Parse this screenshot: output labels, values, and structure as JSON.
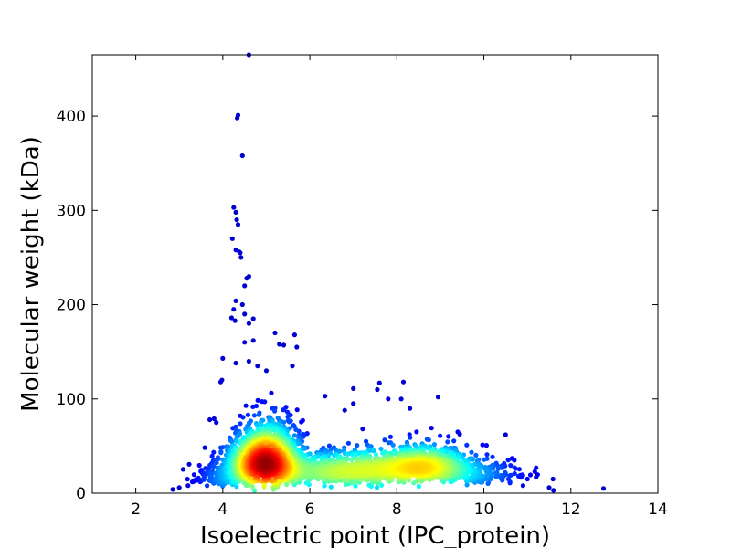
{
  "chart_data": {
    "type": "scatter",
    "title": "",
    "xlabel": "Isoelectric point (IPC_protein)",
    "ylabel": "Molecular weight (kDa)",
    "xlim": [
      1,
      14
    ],
    "ylim": [
      0,
      465
    ],
    "xticks": [
      2,
      4,
      6,
      8,
      10,
      12,
      14
    ],
    "yticks": [
      0,
      100,
      200,
      300,
      400
    ],
    "grid": false,
    "legend": "none",
    "colormap": "jet (point density)",
    "clusters": [
      {
        "center": [
          4.95,
          30
        ],
        "spread": [
          0.45,
          18
        ],
        "count": 1700
      },
      {
        "center": [
          5.05,
          55
        ],
        "spread": [
          0.35,
          20
        ],
        "count": 350
      },
      {
        "center": [
          6.3,
          22
        ],
        "spread": [
          0.7,
          12
        ],
        "count": 500
      },
      {
        "center": [
          7.5,
          25
        ],
        "spread": [
          0.8,
          14
        ],
        "count": 650
      },
      {
        "center": [
          8.7,
          28
        ],
        "spread": [
          0.6,
          14
        ],
        "count": 800
      },
      {
        "center": [
          9.8,
          20
        ],
        "spread": [
          0.6,
          11
        ],
        "count": 180
      },
      {
        "center": [
          3.9,
          15
        ],
        "spread": [
          0.3,
          10
        ],
        "count": 120
      }
    ],
    "outliers": [
      [
        4.6,
        465
      ],
      [
        4.35,
        401
      ],
      [
        4.33,
        398
      ],
      [
        4.45,
        358
      ],
      [
        4.25,
        303
      ],
      [
        4.3,
        298
      ],
      [
        4.32,
        290
      ],
      [
        4.35,
        285
      ],
      [
        4.22,
        270
      ],
      [
        4.3,
        258
      ],
      [
        4.4,
        255
      ],
      [
        4.42,
        250
      ],
      [
        4.38,
        256
      ],
      [
        4.6,
        230
      ],
      [
        4.55,
        228
      ],
      [
        4.5,
        220
      ],
      [
        4.3,
        204
      ],
      [
        4.25,
        195
      ],
      [
        4.45,
        200
      ],
      [
        4.2,
        186
      ],
      [
        4.5,
        190
      ],
      [
        4.6,
        180
      ],
      [
        4.7,
        185
      ],
      [
        4.28,
        183
      ],
      [
        5.2,
        170
      ],
      [
        5.65,
        168
      ],
      [
        5.7,
        155
      ],
      [
        5.3,
        158
      ],
      [
        5.4,
        157
      ],
      [
        4.5,
        160
      ],
      [
        4.7,
        162
      ],
      [
        5.6,
        135
      ],
      [
        4.0,
        143
      ],
      [
        4.3,
        138
      ],
      [
        4.6,
        140
      ],
      [
        4.8,
        135
      ],
      [
        5.0,
        130
      ],
      [
        3.95,
        118
      ],
      [
        3.98,
        120
      ],
      [
        6.35,
        103
      ],
      [
        7.6,
        117
      ],
      [
        7.55,
        110
      ],
      [
        7.0,
        111
      ],
      [
        8.15,
        118
      ],
      [
        8.1,
        100
      ],
      [
        7.8,
        100
      ],
      [
        8.95,
        102
      ],
      [
        7.0,
        95
      ],
      [
        6.8,
        88
      ],
      [
        8.3,
        90
      ],
      [
        10.5,
        62
      ],
      [
        9.4,
        65
      ],
      [
        3.85,
        75
      ],
      [
        3.7,
        78
      ],
      [
        3.8,
        79
      ],
      [
        3.0,
        6
      ],
      [
        2.85,
        4
      ],
      [
        3.2,
        8
      ],
      [
        3.4,
        15
      ],
      [
        3.3,
        12
      ],
      [
        11.0,
        15
      ],
      [
        11.2,
        17
      ],
      [
        11.5,
        6
      ],
      [
        11.6,
        3
      ],
      [
        12.75,
        5
      ],
      [
        10.8,
        18
      ],
      [
        10.6,
        12
      ],
      [
        10.3,
        22
      ],
      [
        10.9,
        8
      ],
      [
        10.7,
        35
      ]
    ]
  }
}
